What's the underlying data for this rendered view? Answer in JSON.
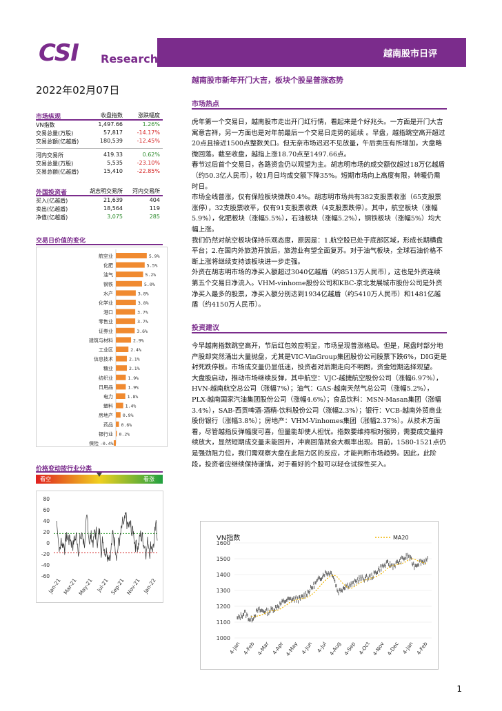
{
  "header": {
    "logo_csi": "CSI",
    "logo_research": "Research",
    "title": "越南股市日评"
  },
  "date": "2022年02月07日",
  "market_overview": {
    "title": "市场纵观",
    "col1": "收盘指数",
    "col2": "涨跌幅度",
    "rows_hose": [
      {
        "label": "VN指数",
        "value": "1,497.66",
        "change": "1.26%",
        "dir": "pos"
      },
      {
        "label": "交易总量(万股)",
        "value": "57,817",
        "change": "-14.17%",
        "dir": "neg"
      },
      {
        "label": "交易总额(亿越盾)",
        "value": "180,539",
        "change": "-12.45%",
        "dir": "neg"
      }
    ],
    "rows_hnx": [
      {
        "label": "河内交易所",
        "value": "419.33",
        "change": "0.62%",
        "dir": "pos"
      },
      {
        "label": "交易总量(万股)",
        "value": "5,535",
        "change": "-23.10%",
        "dir": "neg"
      },
      {
        "label": "交易总额(亿越盾)",
        "value": "15,410",
        "change": "-22.85%",
        "dir": "neg"
      }
    ]
  },
  "foreign": {
    "title": "外国投资者",
    "col1": "胡志明交易所",
    "col2": "河内交易所",
    "rows": [
      {
        "label": "买入(亿越盾)",
        "a": "21,639",
        "b": "404",
        "dir": ""
      },
      {
        "label": "卖出(亿越盾)",
        "a": "18,564",
        "b": "119",
        "dir": ""
      },
      {
        "label": "净值(亿越盾)",
        "a": "3,075",
        "b": "285",
        "dir": "pos"
      }
    ]
  },
  "sector_chart": {
    "title": "交易日价值的变化",
    "color": "#f08a30",
    "items": [
      {
        "label": "航空业",
        "value": 5.9,
        "text": "5.9%"
      },
      {
        "label": "化肥",
        "value": 5.5,
        "text": "5.5%"
      },
      {
        "label": "油气",
        "value": 5.2,
        "text": "5.2%"
      },
      {
        "label": "钢铁",
        "value": 5.0,
        "text": "5.0%"
      },
      {
        "label": "水产",
        "value": 3.8,
        "text": "3.8%"
      },
      {
        "label": "化学业",
        "value": 3.8,
        "text": "3.8%"
      },
      {
        "label": "港口",
        "value": 3.7,
        "text": "3.7%"
      },
      {
        "label": "零售业",
        "value": 3.7,
        "text": "3.7%"
      },
      {
        "label": "证券业",
        "value": 3.6,
        "text": "3.6%"
      },
      {
        "label": "建筑与材料",
        "value": 2.9,
        "text": "2.9%"
      },
      {
        "label": "工业区",
        "value": 2.4,
        "text": "2.4%"
      },
      {
        "label": "信息技术",
        "value": 2.1,
        "text": "2.1%"
      },
      {
        "label": "糖业",
        "value": 2.1,
        "text": "2.1%"
      },
      {
        "label": "纺织业",
        "value": 1.9,
        "text": "1.9%"
      },
      {
        "label": "日用品",
        "value": 1.9,
        "text": "1.9%"
      },
      {
        "label": "电力",
        "value": 1.8,
        "text": "1.8%"
      },
      {
        "label": "塑料",
        "value": 1.4,
        "text": "1.4%"
      },
      {
        "label": "房地产",
        "value": 0.9,
        "text": "0.9%"
      },
      {
        "label": "药品",
        "value": 0.6,
        "text": "0.6%"
      },
      {
        "label": "银行业",
        "value": 0.2,
        "text": "0.2%"
      },
      {
        "label": "保险",
        "value": -0.4,
        "text": "-0.4%"
      }
    ]
  },
  "price_dist": {
    "title": "价格变动按行业分类",
    "left_label": "看空",
    "right_label": "看涨",
    "yticks": [
      "80",
      "60",
      "40",
      "20",
      "0",
      "-20",
      "-40",
      "-60"
    ],
    "xticks": [
      "Jan-21",
      "Mar-21",
      "May-21",
      "Jul-21",
      "Sep-21",
      "Nov-21",
      "Jan-22"
    ],
    "green_line": 17,
    "red_line": -18
  },
  "article": {
    "title": "越南股市新年开门大吉，板块个股呈普涨态势",
    "section1": "市场热点",
    "p1": "虎年第一个交易日，越南股市走出开门红行情，看起来是个好兆头。一方面是开门大吉寓意吉祥，另一方面也是对年前最后一个交易日走势的延续 。早盘，越指跳空高开超过20点且接近1500点整数关口。但无奈市场迟迟不见放量，午后卖压有所增加，大盘略微回落。截至收盘，越指上涨18.70点至1497.66点。",
    "p2": "春节过后首个交易日，各路资金仍以观望为主。胡志明市场的成交额仅超过18万亿越盾（约50.3亿人民币），较1月日均成交额下降35%。短期市场向上高度有限，转暖仍需时日。",
    "p3": "市场全线普涨，仅有保险板块微跌0.4%。胡志明市场共有382支股票收涨（65支股票涨停），32支股票收平，仅有91支股票收跌（4支股票跌停）。其中，航空板块（涨幅5.9%），化肥板块（涨幅5.5%），石油板块（涨幅5.2%），钢铁板块（涨幅5%）均大幅上涨。",
    "p4": "我们仍然对航空板块保持乐观态度，原因是：1.航空股已处于底部区域，形成长期横盘平台；2.在国内外旅游开放后，旅游业有望全面复苏。对于油气板块，全球石油价格不断上涨将继续支持该板块进一步走强。",
    "p5": "外资在胡志明市场的净买入额超过3040亿越盾（约8513万人民币），这也是外资连续第五个交易日净流入。VHM-vinhome股份公司和KBC-京北发展城市股份公司是外资净买入最多的股票，净买入额分别达到1934亿越盾（约5410万人民币）和1481亿越盾（约4150万人民币）。",
    "section2": "投资建议",
    "p6": "今早越南指数跳空高开，节后红包效应明显，市场呈现普涨格局。但是，尾盘时部分地产股却突然涌出大量抛盘，尤其是VIC-VinGroup集团股份公司股票下跌6%，DIG更是封死跌停板。市场成交量仍显低迷，投资者对后期走向不明朗，资金短期选择观望。",
    "p7": "大盘股启动，推动市场继续反弹，其中航空：VJC-越捷航空股份公司（涨幅6.97%），HVN-越南航空总公司（涨幅7%）；油气：GAS-越南天然气总公司（涨幅5.2%），PLX-越南国家汽油集团股份公司（涨幅4.6%）；食品饮料：MSN-Masan集团（涨幅3.4%），SAB-西贡啤酒-酒精-饮料股份公司（涨幅2.3%）；银行：VCB-越南外贸商业股份银行（涨幅3.8%）；房地产：VHM-Vinhomes集团（涨幅2.37%）。从技术方面看，尽管越指反弹幅度可喜，但量能却使人担忧。指数要维持相对强势，需要成交量持续放大，显然短期成交量未能回升，冲高回落就会大概率出现。目前，1580-1521点仍是强劲阻力位，我们需观察大盘在此阻力区的反应，才能判断市场趋势。因此，此阶段，投资者应继续保持谨慎，对于看好的个股可以轻仓试探性买入。"
  },
  "vn_chart": {
    "title": "VN指数",
    "legend": "MA20",
    "yticks": [
      "1600",
      "1500",
      "1400",
      "1300",
      "1200",
      "1100",
      "1000"
    ],
    "xticks": [
      "4-Jan",
      "4-Feb",
      "4-Mar",
      "4-Apr",
      "4-May",
      "4-Jun",
      "4-Jul",
      "4-Aug",
      "4-Sep",
      "4-Oct",
      "4-Nov",
      "4-Dec",
      "4-Jan",
      "4-Feb"
    ],
    "ma_color": "#f0b400"
  },
  "page_number": "1"
}
